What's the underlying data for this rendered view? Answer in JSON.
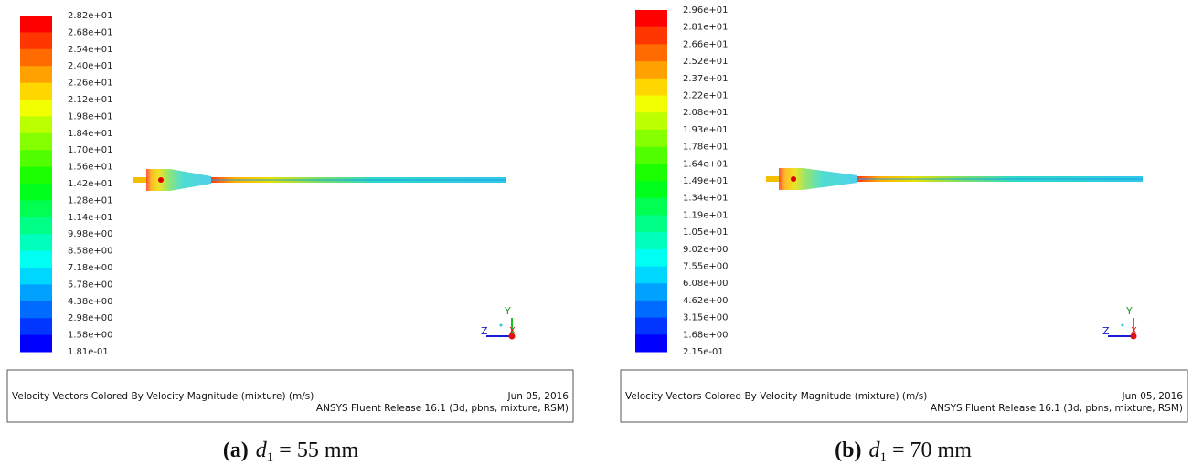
{
  "panels": [
    {
      "legend": [
        "2.82e+01",
        "2.68e+01",
        "2.54e+01",
        "2.40e+01",
        "2.26e+01",
        "2.12e+01",
        "1.98e+01",
        "1.84e+01",
        "1.70e+01",
        "1.56e+01",
        "1.42e+01",
        "1.28e+01",
        "1.14e+01",
        "9.98e+00",
        "8.58e+00",
        "7.18e+00",
        "5.78e+00",
        "4.38e+00",
        "2.98e+00",
        "1.58e+00",
        "1.81e-01"
      ],
      "axes": {
        "y": "Y",
        "z": "Z",
        "x": "X"
      },
      "footer": {
        "description": "Velocity Vectors Colored By Velocity Magnitude (mixture)  (m/s)",
        "date": "Jun 05, 2016",
        "release": "ANSYS Fluent Release 16.1 (3d, pbns, mixture, RSM)"
      },
      "caption": {
        "label": "(a)",
        "variable": "d",
        "subscript": "1",
        "rest": " = 55 mm"
      }
    },
    {
      "legend": [
        "2.96e+01",
        "2.81e+01",
        "2.66e+01",
        "2.52e+01",
        "2.37e+01",
        "2.22e+01",
        "2.08e+01",
        "1.93e+01",
        "1.78e+01",
        "1.64e+01",
        "1.49e+01",
        "1.34e+01",
        "1.19e+01",
        "1.05e+01",
        "9.02e+00",
        "7.55e+00",
        "6.08e+00",
        "4.62e+00",
        "3.15e+00",
        "1.68e+00",
        "2.15e-01"
      ],
      "axes": {
        "y": "Y",
        "z": "Z",
        "x": "X"
      },
      "footer": {
        "description": "Velocity Vectors Colored By Velocity Magnitude (mixture)  (m/s)",
        "date": "Jun 05, 2016",
        "release": "ANSYS Fluent Release 16.1 (3d, pbns, mixture, RSM)"
      },
      "caption": {
        "label": "(b)",
        "variable": "d",
        "subscript": "1",
        "rest": " = 70 mm"
      }
    }
  ]
}
